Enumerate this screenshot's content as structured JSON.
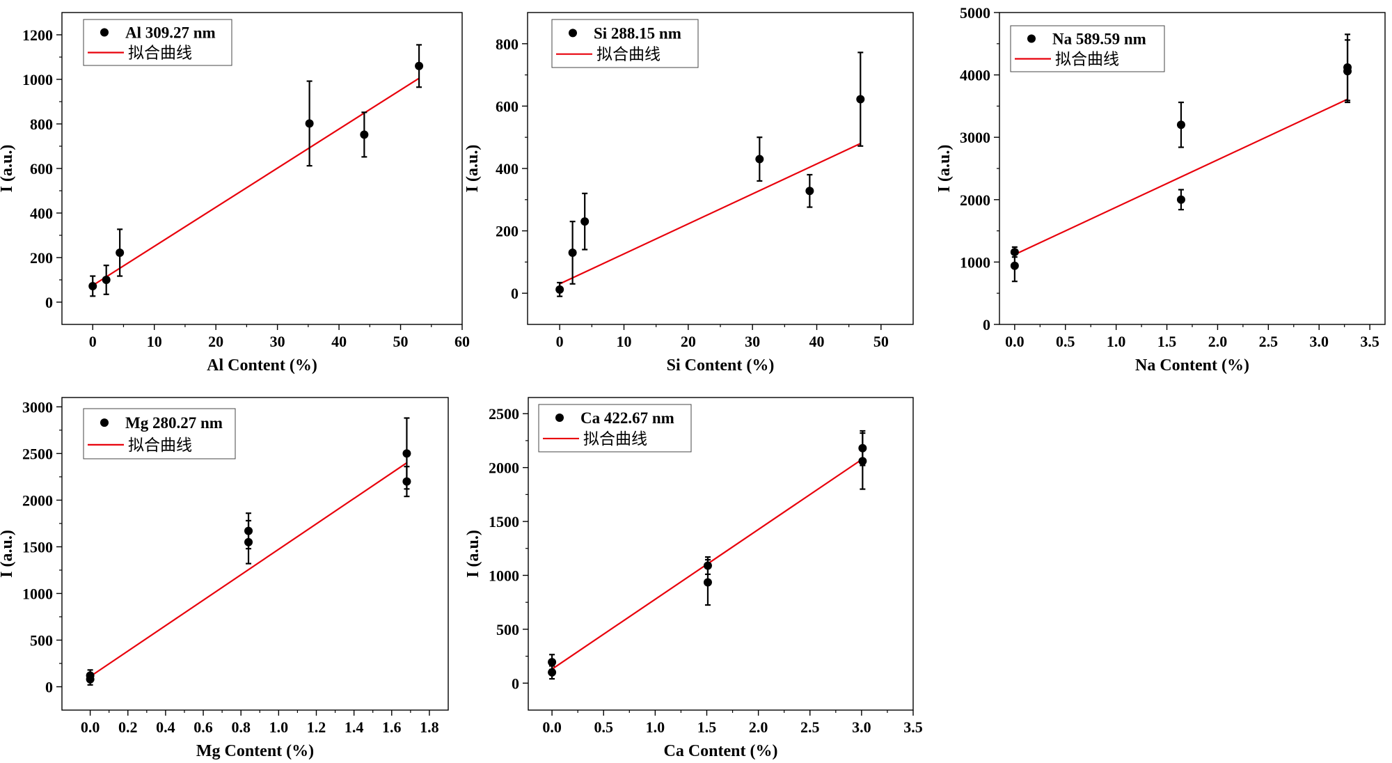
{
  "chart_data": [
    {
      "type": "scatter",
      "title": "",
      "xlabel": "Al Content (%)",
      "ylabel": "I (a.u.)",
      "xlim": [
        -5,
        60
      ],
      "ylim": [
        -100,
        1300
      ],
      "xticks": [
        0,
        10,
        20,
        30,
        40,
        50,
        60
      ],
      "yticks": [
        0,
        200,
        400,
        600,
        800,
        1000,
        1200
      ],
      "legend": {
        "position": "top-left",
        "points_label": "Al 309.27 nm",
        "fit_label": "拟合曲线"
      },
      "points": [
        {
          "x": 0,
          "y": 72,
          "err": 45
        },
        {
          "x": 2.2,
          "y": 100,
          "err": 65
        },
        {
          "x": 4.4,
          "y": 222,
          "err": 105
        },
        {
          "x": 35.2,
          "y": 802,
          "err": 190
        },
        {
          "x": 44.1,
          "y": 752,
          "err": 100
        },
        {
          "x": 53,
          "y": 1060,
          "err": 95
        }
      ],
      "fit_line": {
        "x": [
          0,
          53
        ],
        "y": [
          75,
          1005
        ]
      },
      "colors": {
        "points": "#000000",
        "fit": "#e8000b"
      }
    },
    {
      "type": "scatter",
      "title": "",
      "xlabel": "Si Content (%)",
      "ylabel": "I (a.u.)",
      "xlim": [
        -5,
        55
      ],
      "ylim": [
        -100,
        900
      ],
      "xticks": [
        0,
        10,
        20,
        30,
        40,
        50
      ],
      "yticks": [
        0,
        200,
        400,
        600,
        800
      ],
      "legend": {
        "position": "top-left",
        "points_label": "Si 288.15 nm",
        "fit_label": "拟合曲线"
      },
      "points": [
        {
          "x": 0,
          "y": 12,
          "err": 22
        },
        {
          "x": 2,
          "y": 130,
          "err": 100
        },
        {
          "x": 3.9,
          "y": 230,
          "err": 90
        },
        {
          "x": 31.1,
          "y": 430,
          "err": 70
        },
        {
          "x": 38.9,
          "y": 328,
          "err": 52
        },
        {
          "x": 46.8,
          "y": 622,
          "err": 150
        }
      ],
      "fit_line": {
        "x": [
          0,
          46.8
        ],
        "y": [
          30,
          480
        ]
      },
      "colors": {
        "points": "#000000",
        "fit": "#e8000b"
      }
    },
    {
      "type": "scatter",
      "title": "",
      "xlabel": "Na Content (%)",
      "ylabel": "I (a.u.)",
      "xlim": [
        -0.15,
        3.65
      ],
      "ylim": [
        0,
        5000
      ],
      "xticks": [
        0.0,
        0.5,
        1.0,
        1.5,
        2.0,
        2.5,
        3.0,
        3.5
      ],
      "xtick_labels": [
        "0.0",
        "0.5",
        "1.0",
        "1.5",
        "2.0",
        "2.5",
        "3.0",
        "3.5"
      ],
      "yticks": [
        0,
        1000,
        2000,
        3000,
        4000,
        5000
      ],
      "legend": {
        "position": "top-left",
        "points_label": "Na 589.59 nm",
        "fit_label": "拟合曲线"
      },
      "points": [
        {
          "x": 0,
          "y": 940,
          "err": 250
        },
        {
          "x": 0,
          "y": 1160,
          "err": 80
        },
        {
          "x": 1.64,
          "y": 3200,
          "err": 360
        },
        {
          "x": 1.64,
          "y": 2000,
          "err": 160
        },
        {
          "x": 3.28,
          "y": 4120,
          "err": 530
        },
        {
          "x": 3.28,
          "y": 4060,
          "err": 500
        }
      ],
      "fit_line": {
        "x": [
          0,
          3.28
        ],
        "y": [
          1120,
          3610
        ]
      },
      "colors": {
        "points": "#000000",
        "fit": "#e8000b"
      }
    },
    {
      "type": "scatter",
      "title": "",
      "xlabel": "Mg Content (%)",
      "ylabel": "I (a.u.)",
      "xlim": [
        -0.15,
        1.9
      ],
      "ylim": [
        -250,
        3100
      ],
      "xticks": [
        0.0,
        0.2,
        0.4,
        0.6,
        0.8,
        1.0,
        1.2,
        1.4,
        1.6,
        1.8
      ],
      "xtick_labels": [
        "0.0",
        "0.2",
        "0.4",
        "0.6",
        "0.8",
        "1.0",
        "1.2",
        "1.4",
        "1.6",
        "1.8"
      ],
      "yticks": [
        0,
        500,
        1000,
        1500,
        2000,
        2500,
        3000
      ],
      "legend": {
        "position": "top-left",
        "points_label": "Mg 280.27 nm",
        "fit_label": "拟合曲线"
      },
      "points": [
        {
          "x": 0,
          "y": 80,
          "err": 60
        },
        {
          "x": 0,
          "y": 120,
          "err": 60
        },
        {
          "x": 0.84,
          "y": 1550,
          "err": 230
        },
        {
          "x": 0.84,
          "y": 1670,
          "err": 190
        },
        {
          "x": 1.68,
          "y": 2500,
          "err": 380
        },
        {
          "x": 1.68,
          "y": 2200,
          "err": 160
        }
      ],
      "fit_line": {
        "x": [
          0,
          1.68
        ],
        "y": [
          110,
          2400
        ]
      },
      "colors": {
        "points": "#000000",
        "fit": "#e8000b"
      }
    },
    {
      "type": "scatter",
      "title": "",
      "xlabel": "Ca Content (%)",
      "ylabel": "I (a.u.)",
      "xlim": [
        -0.23,
        3.5
      ],
      "ylim": [
        -250,
        2650
      ],
      "xticks": [
        0.0,
        0.5,
        1.0,
        1.5,
        2.0,
        2.5,
        3.0,
        3.5
      ],
      "xtick_labels": [
        "0.0",
        "0.5",
        "1.0",
        "1.5",
        "2.0",
        "2.5",
        "3.0",
        "3.5"
      ],
      "yticks": [
        0,
        500,
        1000,
        1500,
        2000,
        2500
      ],
      "legend": {
        "position": "top-left",
        "points_label": "Ca 422.67 nm",
        "fit_label": "拟合曲线"
      },
      "points": [
        {
          "x": 0,
          "y": 100,
          "err": 60
        },
        {
          "x": 0,
          "y": 195,
          "err": 70
        },
        {
          "x": 1.51,
          "y": 935,
          "err": 210
        },
        {
          "x": 1.51,
          "y": 1090,
          "err": 80
        },
        {
          "x": 3.01,
          "y": 2180,
          "err": 160
        },
        {
          "x": 3.01,
          "y": 2060,
          "err": 260
        }
      ],
      "fit_line": {
        "x": [
          0,
          3.01
        ],
        "y": [
          130,
          2080
        ]
      },
      "colors": {
        "points": "#000000",
        "fit": "#e8000b"
      }
    }
  ]
}
